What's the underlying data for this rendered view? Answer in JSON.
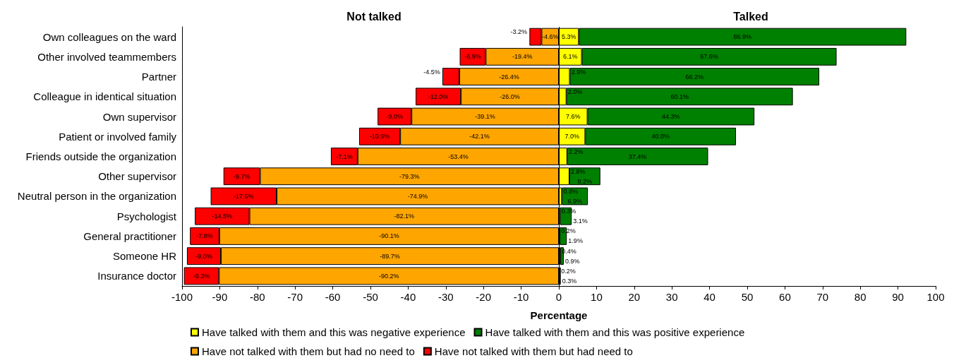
{
  "chart_data": {
    "type": "bar",
    "orientation": "horizontal",
    "stacked": true,
    "xlabel": "Percentage",
    "annotations": [
      "Not talked",
      "Talked"
    ],
    "categories": [
      "Own colleagues on the ward",
      "Other involved teammembers",
      "Partner",
      "Colleague in identical situation",
      "Own supervisor",
      "Patient or involved family",
      "Friends outside the organization",
      "Other supervisor",
      "Neutral person in the organization",
      "Psychologist",
      "General practitioner",
      "Someone HR",
      "Insurance doctor"
    ],
    "series": [
      {
        "name": "Have talked with them and this was negative experience",
        "color": "#ffff00",
        "values": [
          5.3,
          6.1,
          2.9,
          2.0,
          7.6,
          7.0,
          2.2,
          2.8,
          0.8,
          0.3,
          0.2,
          0.4,
          0.2
        ],
        "value_labels": [
          "5.3%",
          "6.1%",
          "2.9%",
          "2.0%",
          "7.6%",
          "7.0%",
          "2.2%",
          "2.8%",
          "0.8%",
          "0.3%",
          "0.2%",
          "0.4%",
          "0.2%"
        ]
      },
      {
        "name": "Have talked with them and this was positive experience",
        "color": "#008000",
        "values": [
          86.9,
          67.6,
          66.2,
          60.1,
          44.3,
          40.0,
          37.4,
          8.2,
          6.9,
          3.1,
          1.9,
          0.9,
          0.3
        ],
        "value_labels": [
          "86.9%",
          "67.6%",
          "66.2%",
          "60.1%",
          "44.3%",
          "40.0%",
          "37.4%",
          "8.2%",
          "6.9%",
          "3.1%",
          "1.9%",
          "0.9%",
          "0.3%"
        ]
      },
      {
        "name": "Have not talked with them but had no need to",
        "color": "#ffa500",
        "values": [
          -4.6,
          -19.4,
          -26.4,
          -26.0,
          -39.1,
          -42.1,
          -53.4,
          -79.3,
          -74.9,
          -82.1,
          -90.1,
          -89.7,
          -90.2
        ],
        "value_labels": [
          "-4.6%",
          "-19.4%",
          "-26.4%",
          "-26.0%",
          "-39.1%",
          "-42.1%",
          "-53.4%",
          "-79.3%",
          "-74.9%",
          "-82.1%",
          "-90.1%",
          "-89.7%",
          "-90.2%"
        ]
      },
      {
        "name": "Have not talked with them but had need to",
        "color": "#ff0000",
        "values": [
          -3.2,
          -6.9,
          -4.5,
          -12.0,
          -9.0,
          -10.9,
          -7.1,
          -9.7,
          -17.5,
          -14.5,
          -7.8,
          -9.0,
          -9.3
        ],
        "value_labels": [
          "-3.2%",
          "-6.9%",
          "-4.5%",
          "-12.0%",
          "-9.0%",
          "-10.9%",
          "-7.1%",
          "-9.7%",
          "-17.5%",
          "-14.5%",
          "-7.8%",
          "-9.0%",
          "-9.3%"
        ]
      }
    ],
    "xlim": [
      -100,
      100
    ],
    "xticks": [
      -100,
      -90,
      -80,
      -70,
      -60,
      -50,
      -40,
      -30,
      -20,
      -10,
      0,
      10,
      20,
      30,
      40,
      50,
      60,
      70,
      80,
      90,
      100
    ],
    "ref_lines": [
      {
        "axis": "x",
        "value": 0,
        "label": null
      }
    ],
    "legend": "bottom"
  }
}
